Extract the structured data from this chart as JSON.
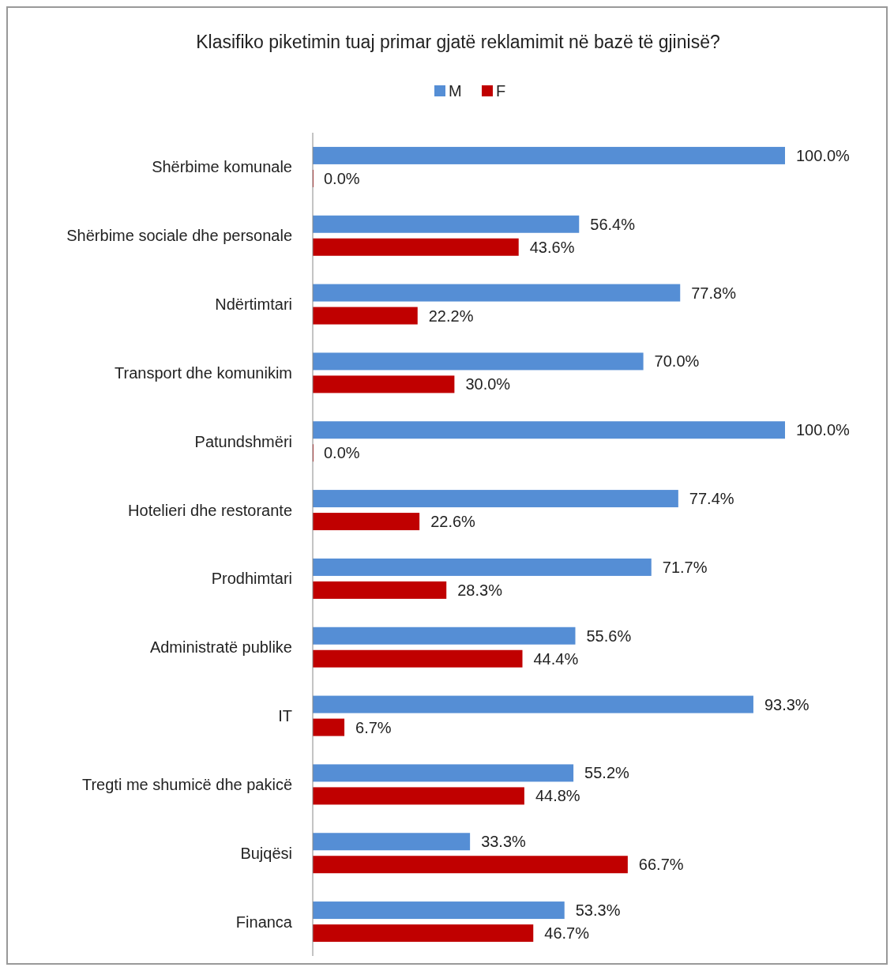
{
  "chart_data": {
    "type": "bar",
    "orientation": "horizontal",
    "title": "Klasifiko piketimin tuaj primar gjatë reklamimit në bazë të gjinisë?",
    "legend": "top",
    "xlim": [
      0,
      100
    ],
    "categories": [
      "Shërbime komunale",
      "Shërbime sociale dhe personale",
      "Ndërtimtari",
      "Transport dhe komunikim",
      "Patundshmëri",
      "Hotelieri dhe restorante",
      "Prodhimtari",
      "Administratë publike",
      "IT",
      "Tregti me shumicë dhe pakicë",
      "Bujqësi",
      "Financa"
    ],
    "series": [
      {
        "name": "F",
        "color": "#c00000",
        "values": [
          0,
          43.6,
          22.2,
          30,
          0,
          22.6,
          28.3,
          44.4,
          6.7,
          44.8,
          66.7,
          46.7
        ],
        "value_labels": [
          "0.0%",
          "43.6%",
          "22.2%",
          "30.0%",
          "0.0%",
          "22.6%",
          "28.3%",
          "44.4%",
          "6.7%",
          "44.8%",
          "66.7%",
          "46.7%"
        ]
      },
      {
        "name": "M",
        "color": "#558ed5",
        "values": [
          100,
          56.4,
          77.8,
          70,
          100,
          77.4,
          71.7,
          55.6,
          93.3,
          55.2,
          33.3,
          53.3
        ],
        "value_labels": [
          "100.0%",
          "56.4%",
          "77.8%",
          "70.0%",
          "100.0%",
          "77.4%",
          "71.7%",
          "55.6%",
          "93.3%",
          "55.2%",
          "33.3%",
          "53.3%"
        ]
      }
    ]
  }
}
